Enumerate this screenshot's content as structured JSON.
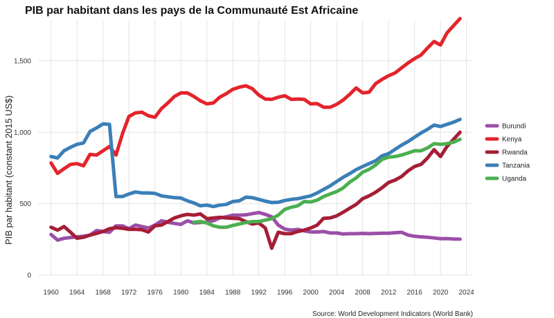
{
  "chart_data": {
    "type": "line",
    "title": "PIB par habitant dans les pays de la Communauté Est Africaine",
    "ylabel": "PIB par habitant (constant 2015 US$)",
    "xlabel": "",
    "source": "Source: World Development Indicators (World Bank)",
    "xlim": [
      1958,
      2025
    ],
    "ylim": [
      0,
      1780
    ],
    "x_ticks": [
      1960,
      1964,
      1968,
      1972,
      1976,
      1980,
      1984,
      1988,
      1992,
      1996,
      2000,
      2004,
      2008,
      2012,
      2016,
      2020,
      2024
    ],
    "y_ticks": [
      {
        "value": 0,
        "label": "0"
      },
      {
        "value": 500,
        "label": "500"
      },
      {
        "value": 1000,
        "label": "1,000"
      },
      {
        "value": 1500,
        "label": "1,500"
      }
    ],
    "grid": true,
    "legend_position": "right",
    "series": [
      {
        "name": "Burundi",
        "color": "#9b4fa8",
        "points": [
          [
            1960,
            285
          ],
          [
            1961,
            245
          ],
          [
            1962,
            258
          ],
          [
            1963,
            263
          ],
          [
            1964,
            268
          ],
          [
            1965,
            273
          ],
          [
            1966,
            280
          ],
          [
            1967,
            312
          ],
          [
            1968,
            305
          ],
          [
            1969,
            300
          ],
          [
            1970,
            345
          ],
          [
            1971,
            345
          ],
          [
            1972,
            325
          ],
          [
            1973,
            350
          ],
          [
            1974,
            340
          ],
          [
            1975,
            330
          ],
          [
            1976,
            350
          ],
          [
            1977,
            380
          ],
          [
            1978,
            370
          ],
          [
            1979,
            362
          ],
          [
            1980,
            355
          ],
          [
            1981,
            380
          ],
          [
            1982,
            365
          ],
          [
            1983,
            368
          ],
          [
            1984,
            372
          ],
          [
            1985,
            380
          ],
          [
            1986,
            400
          ],
          [
            1987,
            408
          ],
          [
            1988,
            420
          ],
          [
            1989,
            420
          ],
          [
            1990,
            422
          ],
          [
            1991,
            430
          ],
          [
            1992,
            438
          ],
          [
            1993,
            425
          ],
          [
            1994,
            408
          ],
          [
            1995,
            350
          ],
          [
            1996,
            322
          ],
          [
            1997,
            315
          ],
          [
            1998,
            320
          ],
          [
            1999,
            310
          ],
          [
            2000,
            302
          ],
          [
            2001,
            302
          ],
          [
            2002,
            305
          ],
          [
            2003,
            295
          ],
          [
            2004,
            295
          ],
          [
            2005,
            288
          ],
          [
            2006,
            290
          ],
          [
            2007,
            290
          ],
          [
            2008,
            292
          ],
          [
            2009,
            290
          ],
          [
            2010,
            292
          ],
          [
            2011,
            293
          ],
          [
            2012,
            293
          ],
          [
            2013,
            297
          ],
          [
            2014,
            300
          ],
          [
            2015,
            280
          ],
          [
            2016,
            272
          ],
          [
            2017,
            268
          ],
          [
            2018,
            265
          ],
          [
            2019,
            260
          ],
          [
            2020,
            255
          ],
          [
            2021,
            256
          ],
          [
            2022,
            253
          ],
          [
            2023,
            252
          ]
        ]
      },
      {
        "name": "Kenya",
        "color": "#e3242b",
        "points": [
          [
            1960,
            785
          ],
          [
            1961,
            712
          ],
          [
            1962,
            745
          ],
          [
            1963,
            775
          ],
          [
            1964,
            780
          ],
          [
            1965,
            765
          ],
          [
            1966,
            845
          ],
          [
            1967,
            840
          ],
          [
            1968,
            870
          ],
          [
            1969,
            900
          ],
          [
            1970,
            840
          ],
          [
            1971,
            990
          ],
          [
            1972,
            1110
          ],
          [
            1973,
            1135
          ],
          [
            1974,
            1140
          ],
          [
            1975,
            1115
          ],
          [
            1976,
            1105
          ],
          [
            1977,
            1165
          ],
          [
            1978,
            1205
          ],
          [
            1979,
            1250
          ],
          [
            1980,
            1275
          ],
          [
            1981,
            1275
          ],
          [
            1982,
            1250
          ],
          [
            1983,
            1220
          ],
          [
            1984,
            1198
          ],
          [
            1985,
            1205
          ],
          [
            1986,
            1245
          ],
          [
            1987,
            1270
          ],
          [
            1988,
            1300
          ],
          [
            1989,
            1315
          ],
          [
            1990,
            1325
          ],
          [
            1991,
            1305
          ],
          [
            1992,
            1260
          ],
          [
            1993,
            1232
          ],
          [
            1994,
            1230
          ],
          [
            1995,
            1245
          ],
          [
            1996,
            1255
          ],
          [
            1997,
            1230
          ],
          [
            1998,
            1232
          ],
          [
            1999,
            1230
          ],
          [
            2000,
            1198
          ],
          [
            2001,
            1200
          ],
          [
            2002,
            1175
          ],
          [
            2003,
            1175
          ],
          [
            2004,
            1195
          ],
          [
            2005,
            1225
          ],
          [
            2006,
            1265
          ],
          [
            2007,
            1310
          ],
          [
            2008,
            1275
          ],
          [
            2009,
            1280
          ],
          [
            2010,
            1340
          ],
          [
            2011,
            1370
          ],
          [
            2012,
            1395
          ],
          [
            2013,
            1415
          ],
          [
            2014,
            1450
          ],
          [
            2015,
            1485
          ],
          [
            2016,
            1515
          ],
          [
            2017,
            1540
          ],
          [
            2018,
            1590
          ],
          [
            2019,
            1635
          ],
          [
            2020,
            1610
          ],
          [
            2021,
            1695
          ],
          [
            2022,
            1745
          ],
          [
            2023,
            1795
          ]
        ]
      },
      {
        "name": "Rwanda",
        "color": "#a51e36",
        "points": [
          [
            1960,
            335
          ],
          [
            1961,
            315
          ],
          [
            1962,
            340
          ],
          [
            1963,
            300
          ],
          [
            1964,
            258
          ],
          [
            1965,
            265
          ],
          [
            1966,
            280
          ],
          [
            1967,
            292
          ],
          [
            1968,
            305
          ],
          [
            1969,
            325
          ],
          [
            1970,
            332
          ],
          [
            1971,
            328
          ],
          [
            1972,
            320
          ],
          [
            1973,
            320
          ],
          [
            1974,
            318
          ],
          [
            1975,
            302
          ],
          [
            1976,
            345
          ],
          [
            1977,
            350
          ],
          [
            1978,
            375
          ],
          [
            1979,
            400
          ],
          [
            1980,
            415
          ],
          [
            1981,
            425
          ],
          [
            1982,
            420
          ],
          [
            1983,
            428
          ],
          [
            1984,
            395
          ],
          [
            1985,
            400
          ],
          [
            1986,
            405
          ],
          [
            1987,
            400
          ],
          [
            1988,
            398
          ],
          [
            1989,
            395
          ],
          [
            1990,
            375
          ],
          [
            1991,
            358
          ],
          [
            1992,
            365
          ],
          [
            1993,
            330
          ],
          [
            1994,
            188
          ],
          [
            1995,
            300
          ],
          [
            1996,
            290
          ],
          [
            1997,
            290
          ],
          [
            1998,
            305
          ],
          [
            1999,
            315
          ],
          [
            2000,
            330
          ],
          [
            2001,
            350
          ],
          [
            2002,
            398
          ],
          [
            2003,
            400
          ],
          [
            2004,
            415
          ],
          [
            2005,
            440
          ],
          [
            2006,
            468
          ],
          [
            2007,
            495
          ],
          [
            2008,
            535
          ],
          [
            2009,
            555
          ],
          [
            2010,
            580
          ],
          [
            2011,
            612
          ],
          [
            2012,
            648
          ],
          [
            2013,
            665
          ],
          [
            2014,
            690
          ],
          [
            2015,
            730
          ],
          [
            2016,
            760
          ],
          [
            2017,
            775
          ],
          [
            2018,
            820
          ],
          [
            2019,
            878
          ],
          [
            2020,
            830
          ],
          [
            2021,
            900
          ],
          [
            2022,
            950
          ],
          [
            2023,
            1000
          ]
        ]
      },
      {
        "name": "Tanzania",
        "color": "#3a7fb8",
        "points": [
          [
            1960,
            830
          ],
          [
            1961,
            820
          ],
          [
            1962,
            870
          ],
          [
            1963,
            895
          ],
          [
            1964,
            915
          ],
          [
            1965,
            925
          ],
          [
            1966,
            1005
          ],
          [
            1967,
            1030
          ],
          [
            1968,
            1058
          ],
          [
            1969,
            1055
          ],
          [
            1970,
            550
          ],
          [
            1971,
            550
          ],
          [
            1972,
            568
          ],
          [
            1973,
            582
          ],
          [
            1974,
            575
          ],
          [
            1975,
            575
          ],
          [
            1976,
            572
          ],
          [
            1977,
            555
          ],
          [
            1978,
            548
          ],
          [
            1979,
            542
          ],
          [
            1980,
            540
          ],
          [
            1981,
            520
          ],
          [
            1982,
            505
          ],
          [
            1983,
            485
          ],
          [
            1984,
            490
          ],
          [
            1985,
            480
          ],
          [
            1986,
            490
          ],
          [
            1987,
            495
          ],
          [
            1988,
            515
          ],
          [
            1989,
            520
          ],
          [
            1990,
            545
          ],
          [
            1991,
            542
          ],
          [
            1992,
            530
          ],
          [
            1993,
            518
          ],
          [
            1994,
            508
          ],
          [
            1995,
            510
          ],
          [
            1996,
            522
          ],
          [
            1997,
            530
          ],
          [
            1998,
            535
          ],
          [
            1999,
            545
          ],
          [
            2000,
            555
          ],
          [
            2001,
            575
          ],
          [
            2002,
            600
          ],
          [
            2003,
            625
          ],
          [
            2004,
            655
          ],
          [
            2005,
            685
          ],
          [
            2006,
            710
          ],
          [
            2007,
            738
          ],
          [
            2008,
            760
          ],
          [
            2009,
            780
          ],
          [
            2010,
            800
          ],
          [
            2011,
            835
          ],
          [
            2012,
            850
          ],
          [
            2013,
            880
          ],
          [
            2014,
            910
          ],
          [
            2015,
            935
          ],
          [
            2016,
            965
          ],
          [
            2017,
            995
          ],
          [
            2018,
            1020
          ],
          [
            2019,
            1050
          ],
          [
            2020,
            1040
          ],
          [
            2021,
            1055
          ],
          [
            2022,
            1070
          ],
          [
            2023,
            1090
          ]
        ]
      },
      {
        "name": "Uganda",
        "color": "#4caf50",
        "points": [
          [
            1982,
            370
          ],
          [
            1983,
            375
          ],
          [
            1984,
            365
          ],
          [
            1985,
            345
          ],
          [
            1986,
            335
          ],
          [
            1987,
            335
          ],
          [
            1988,
            348
          ],
          [
            1989,
            358
          ],
          [
            1990,
            368
          ],
          [
            1991,
            375
          ],
          [
            1992,
            375
          ],
          [
            1993,
            385
          ],
          [
            1994,
            395
          ],
          [
            1995,
            420
          ],
          [
            1996,
            460
          ],
          [
            1997,
            475
          ],
          [
            1998,
            485
          ],
          [
            1999,
            515
          ],
          [
            2000,
            512
          ],
          [
            2001,
            525
          ],
          [
            2002,
            550
          ],
          [
            2003,
            568
          ],
          [
            2004,
            585
          ],
          [
            2005,
            610
          ],
          [
            2006,
            650
          ],
          [
            2007,
            680
          ],
          [
            2008,
            720
          ],
          [
            2009,
            740
          ],
          [
            2010,
            770
          ],
          [
            2011,
            810
          ],
          [
            2012,
            825
          ],
          [
            2013,
            830
          ],
          [
            2014,
            840
          ],
          [
            2015,
            855
          ],
          [
            2016,
            870
          ],
          [
            2017,
            870
          ],
          [
            2018,
            890
          ],
          [
            2019,
            920
          ],
          [
            2020,
            915
          ],
          [
            2021,
            920
          ],
          [
            2022,
            930
          ],
          [
            2023,
            950
          ]
        ]
      }
    ]
  }
}
